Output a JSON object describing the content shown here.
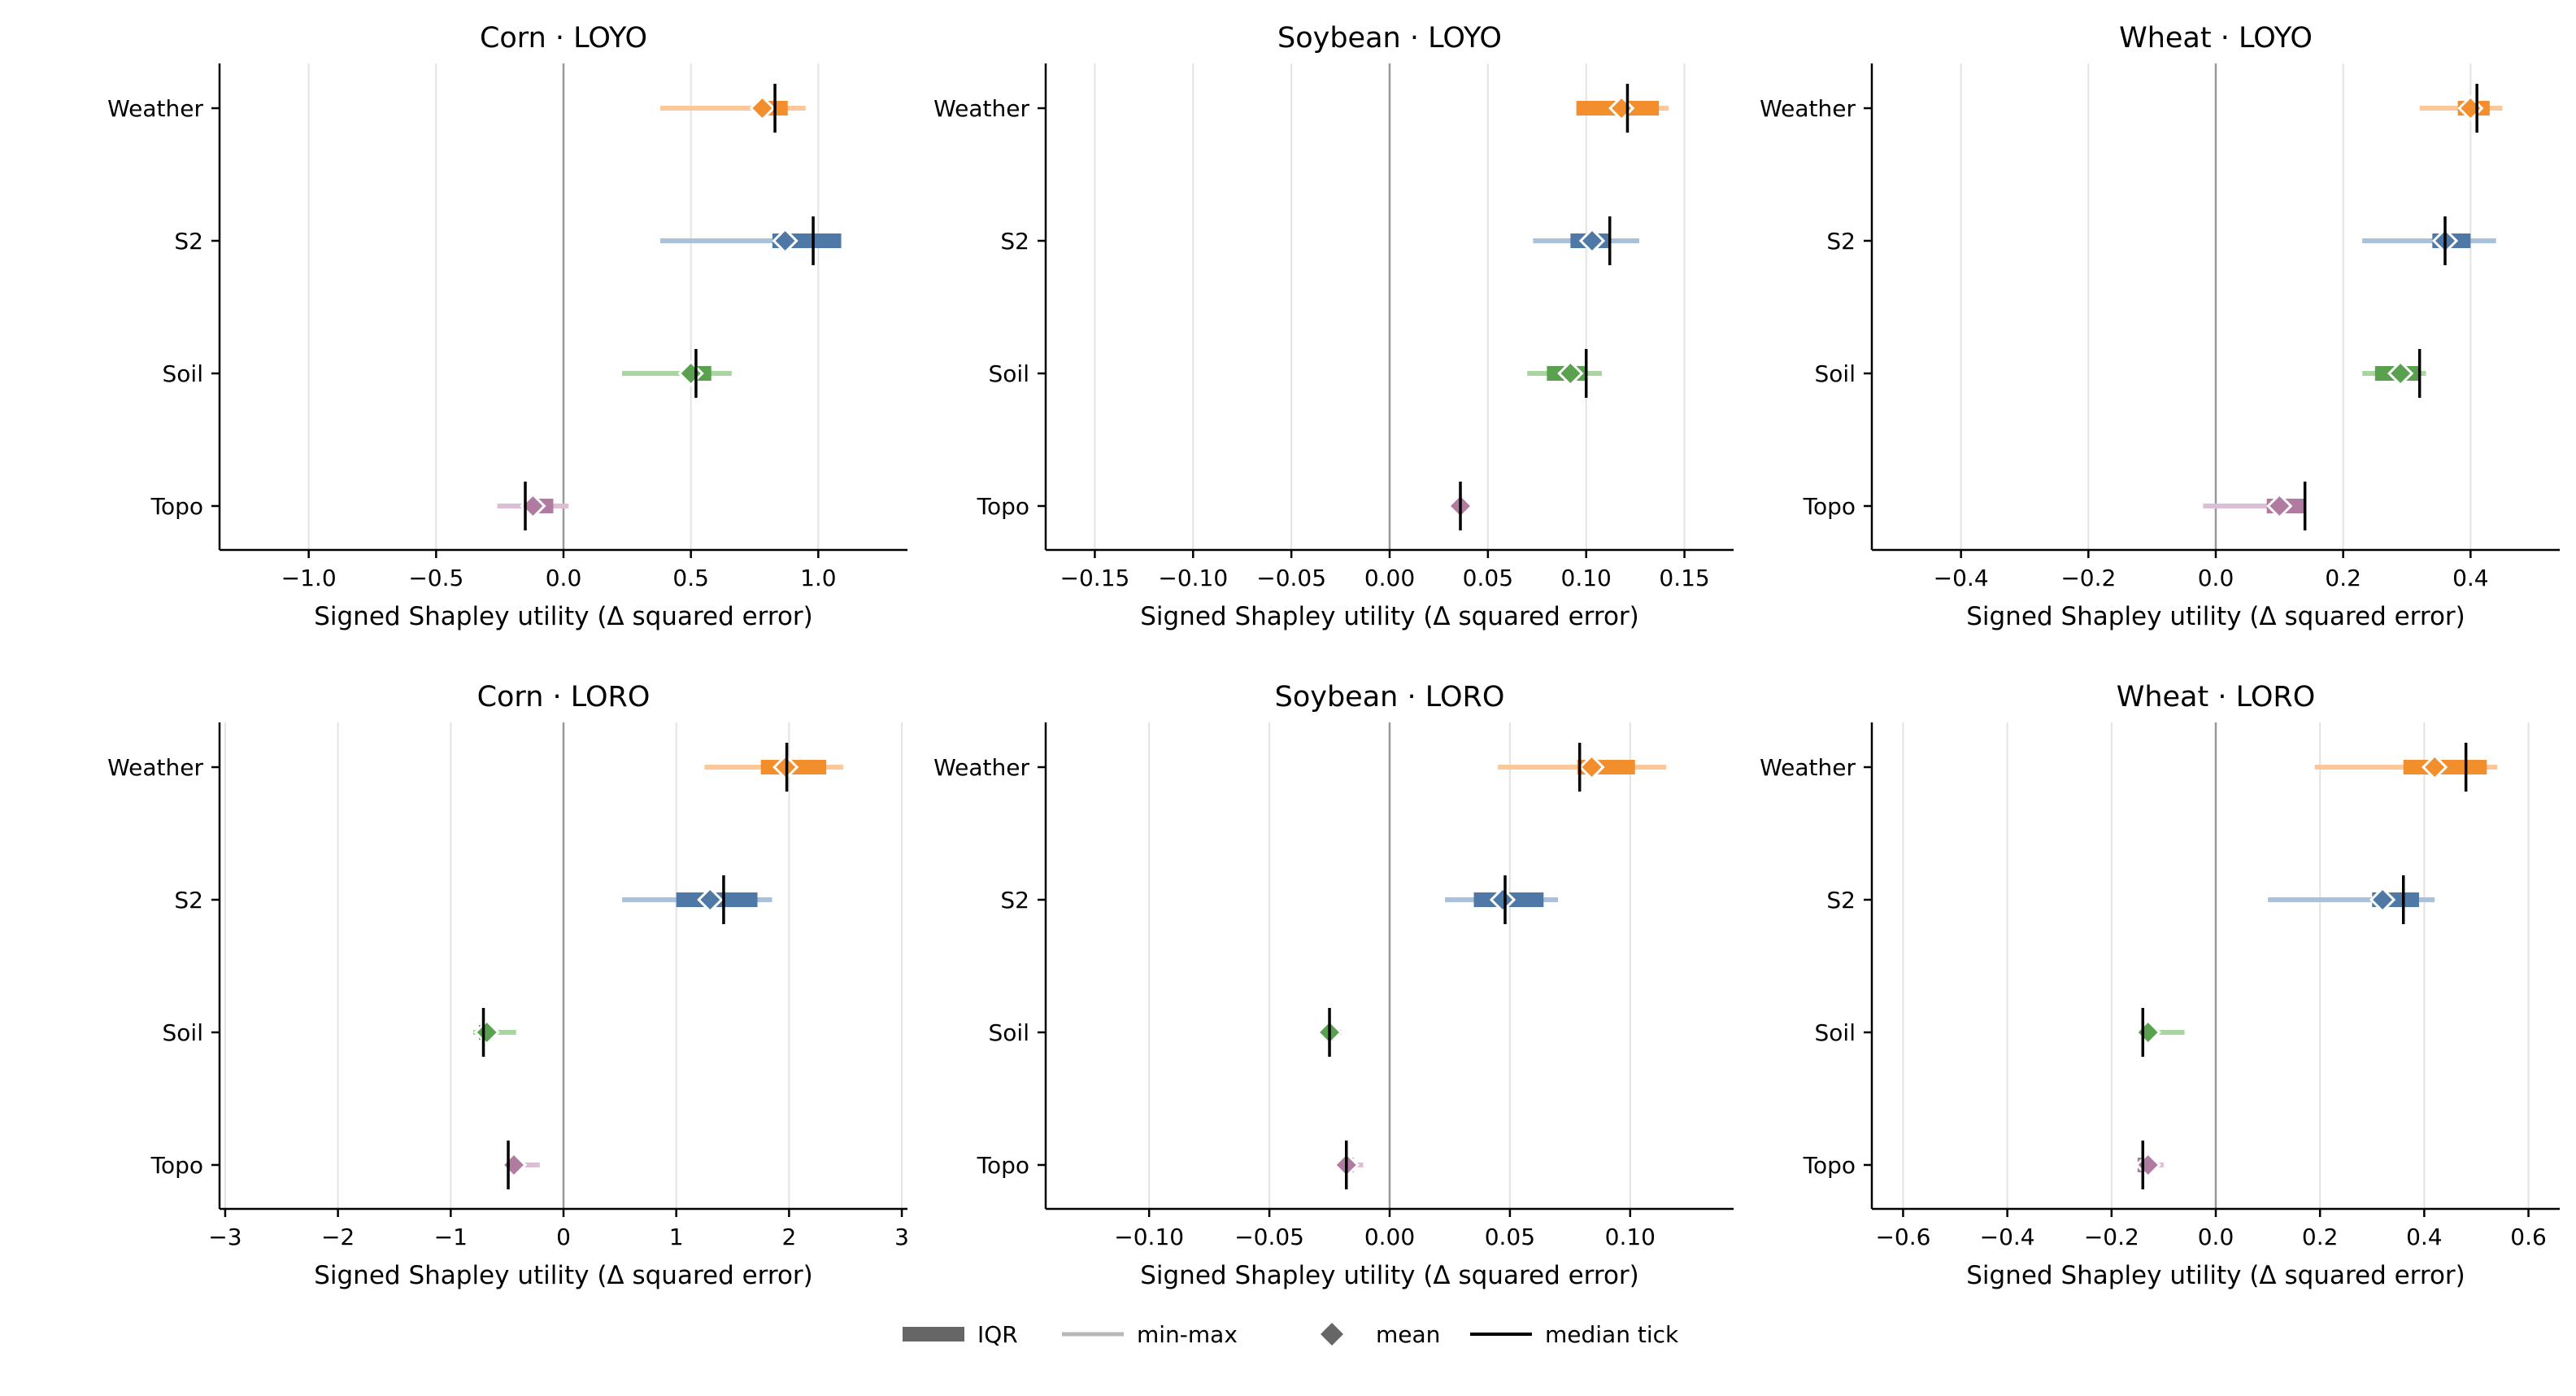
{
  "legend": {
    "placement": "bottom-center",
    "items": [
      {
        "key": "iqr",
        "label": "IQR"
      },
      {
        "key": "minmax",
        "label": "min-max"
      },
      {
        "key": "mean",
        "label": "mean"
      },
      {
        "key": "median",
        "label": "median tick"
      }
    ]
  },
  "colors": {
    "Weather": {
      "main": "#f28e2b",
      "light": "#fcc89a"
    },
    "S2": {
      "main": "#4e79a7",
      "light": "#a9c1da"
    },
    "Soil": {
      "main": "#59a14f",
      "light": "#a9d5a0"
    },
    "Topo": {
      "main": "#b07aa1",
      "light": "#ddbfd5"
    },
    "zero_line": "#999999",
    "grid": "#e3e3e3",
    "median": "#000000"
  },
  "chart_data": [
    {
      "type": "range-dot",
      "title": "Corn · LOYO",
      "xlabel": "Signed Shapley utility (Δ squared error)",
      "categories": [
        "Weather",
        "S2",
        "Soil",
        "Topo"
      ],
      "xlim": [
        -1.35,
        1.35
      ],
      "xticks": [
        -1.0,
        -0.5,
        0.0,
        0.5,
        1.0
      ],
      "xtick_labels": [
        "−1.0",
        "−0.5",
        "0.0",
        "0.5",
        "1.0"
      ],
      "grid": true,
      "rows": [
        {
          "name": "Weather",
          "min": 0.38,
          "q1": 0.76,
          "median": 0.83,
          "q3": 0.88,
          "max": 0.95,
          "mean": 0.78
        },
        {
          "name": "S2",
          "min": 0.38,
          "q1": 0.82,
          "median": 0.98,
          "q3": 1.09,
          "max": 1.09,
          "mean": 0.87
        },
        {
          "name": "Soil",
          "min": 0.23,
          "q1": 0.49,
          "median": 0.52,
          "q3": 0.58,
          "max": 0.66,
          "mean": 0.5
        },
        {
          "name": "Topo",
          "min": -0.26,
          "q1": -0.15,
          "median": -0.15,
          "q3": -0.04,
          "max": 0.02,
          "mean": -0.12
        }
      ]
    },
    {
      "type": "range-dot",
      "title": "Soybean · LOYO",
      "xlabel": "Signed Shapley utility (Δ squared error)",
      "categories": [
        "Weather",
        "S2",
        "Soil",
        "Topo"
      ],
      "xlim": [
        -0.175,
        0.175
      ],
      "xticks": [
        -0.15,
        -0.1,
        -0.05,
        0.0,
        0.05,
        0.1,
        0.15
      ],
      "xtick_labels": [
        "−0.15",
        "−0.10",
        "−0.05",
        "0.00",
        "0.05",
        "0.10",
        "0.15"
      ],
      "grid": true,
      "rows": [
        {
          "name": "Weather",
          "min": 0.095,
          "q1": 0.095,
          "median": 0.121,
          "q3": 0.137,
          "max": 0.142,
          "mean": 0.118
        },
        {
          "name": "S2",
          "min": 0.073,
          "q1": 0.092,
          "median": 0.112,
          "q3": 0.112,
          "max": 0.127,
          "mean": 0.103
        },
        {
          "name": "Soil",
          "min": 0.07,
          "q1": 0.08,
          "median": 0.1,
          "q3": 0.1,
          "max": 0.108,
          "mean": 0.092
        },
        {
          "name": "Topo",
          "min": 0.034,
          "q1": 0.035,
          "median": 0.036,
          "q3": 0.037,
          "max": 0.038,
          "mean": 0.036
        }
      ]
    },
    {
      "type": "range-dot",
      "title": "Wheat · LOYO",
      "xlabel": "Signed Shapley utility (Δ squared error)",
      "categories": [
        "Weather",
        "S2",
        "Soil",
        "Topo"
      ],
      "xlim": [
        -0.54,
        0.54
      ],
      "xticks": [
        -0.4,
        -0.2,
        0.0,
        0.2,
        0.4
      ],
      "xtick_labels": [
        "−0.4",
        "−0.2",
        "0.0",
        "0.2",
        "0.4"
      ],
      "grid": true,
      "rows": [
        {
          "name": "Weather",
          "min": 0.32,
          "q1": 0.38,
          "median": 0.41,
          "q3": 0.43,
          "max": 0.45,
          "mean": 0.4
        },
        {
          "name": "S2",
          "min": 0.23,
          "q1": 0.34,
          "median": 0.36,
          "q3": 0.4,
          "max": 0.44,
          "mean": 0.36
        },
        {
          "name": "Soil",
          "min": 0.23,
          "q1": 0.25,
          "median": 0.32,
          "q3": 0.32,
          "max": 0.33,
          "mean": 0.29
        },
        {
          "name": "Topo",
          "min": -0.02,
          "q1": 0.08,
          "median": 0.14,
          "q3": 0.14,
          "max": 0.14,
          "mean": 0.1
        }
      ]
    },
    {
      "type": "range-dot",
      "title": "Corn · LORO",
      "xlabel": "Signed Shapley utility (Δ squared error)",
      "categories": [
        "Weather",
        "S2",
        "Soil",
        "Topo"
      ],
      "xlim": [
        -3.05,
        3.05
      ],
      "xticks": [
        -3,
        -2,
        -1,
        0,
        1,
        2,
        3
      ],
      "xtick_labels": [
        "−3",
        "−2",
        "−1",
        "0",
        "1",
        "2",
        "3"
      ],
      "grid": true,
      "rows": [
        {
          "name": "Weather",
          "min": 1.25,
          "q1": 1.75,
          "median": 1.98,
          "q3": 2.33,
          "max": 2.48,
          "mean": 1.97
        },
        {
          "name": "S2",
          "min": 0.52,
          "q1": 1.0,
          "median": 1.42,
          "q3": 1.72,
          "max": 1.85,
          "mean": 1.3
        },
        {
          "name": "Soil",
          "min": -0.8,
          "q1": -0.75,
          "median": -0.71,
          "q3": -0.65,
          "max": -0.42,
          "mean": -0.68
        },
        {
          "name": "Topo",
          "min": -0.52,
          "q1": -0.5,
          "median": -0.49,
          "q3": -0.4,
          "max": -0.21,
          "mean": -0.44
        }
      ]
    },
    {
      "type": "range-dot",
      "title": "Soybean · LORO",
      "xlabel": "Signed Shapley utility (Δ squared error)",
      "categories": [
        "Weather",
        "S2",
        "Soil",
        "Topo"
      ],
      "xlim": [
        -0.143,
        0.143
      ],
      "xticks": [
        -0.1,
        -0.05,
        0.0,
        0.05,
        0.1
      ],
      "xtick_labels": [
        "−0.10",
        "−0.05",
        "0.00",
        "0.05",
        "0.10"
      ],
      "grid": true,
      "rows": [
        {
          "name": "Weather",
          "min": 0.045,
          "q1": 0.078,
          "median": 0.079,
          "q3": 0.102,
          "max": 0.115,
          "mean": 0.084
        },
        {
          "name": "S2",
          "min": 0.023,
          "q1": 0.035,
          "median": 0.048,
          "q3": 0.064,
          "max": 0.07,
          "mean": 0.047
        },
        {
          "name": "Soil",
          "min": -0.028,
          "q1": -0.026,
          "median": -0.025,
          "q3": -0.023,
          "max": -0.02,
          "mean": -0.025
        },
        {
          "name": "Topo",
          "min": -0.02,
          "q1": -0.019,
          "median": -0.018,
          "q3": -0.015,
          "max": -0.011,
          "mean": -0.018
        }
      ]
    },
    {
      "type": "range-dot",
      "title": "Wheat · LORO",
      "xlabel": "Signed Shapley utility (Δ squared error)",
      "categories": [
        "Weather",
        "S2",
        "Soil",
        "Topo"
      ],
      "xlim": [
        -0.66,
        0.66
      ],
      "xticks": [
        -0.6,
        -0.4,
        -0.2,
        0.0,
        0.2,
        0.4,
        0.6
      ],
      "xtick_labels": [
        "−0.6",
        "−0.4",
        "−0.2",
        "0.0",
        "0.2",
        "0.4",
        "0.6"
      ],
      "grid": true,
      "rows": [
        {
          "name": "Weather",
          "min": 0.19,
          "q1": 0.36,
          "median": 0.48,
          "q3": 0.52,
          "max": 0.54,
          "mean": 0.42
        },
        {
          "name": "S2",
          "min": 0.1,
          "q1": 0.3,
          "median": 0.36,
          "q3": 0.39,
          "max": 0.42,
          "mean": 0.32
        },
        {
          "name": "Soil",
          "min": -0.15,
          "q1": -0.14,
          "median": -0.14,
          "q3": -0.12,
          "max": -0.06,
          "mean": -0.13
        },
        {
          "name": "Topo",
          "min": -0.15,
          "q1": -0.15,
          "median": -0.14,
          "q3": -0.12,
          "max": -0.1,
          "mean": -0.13
        }
      ]
    }
  ]
}
